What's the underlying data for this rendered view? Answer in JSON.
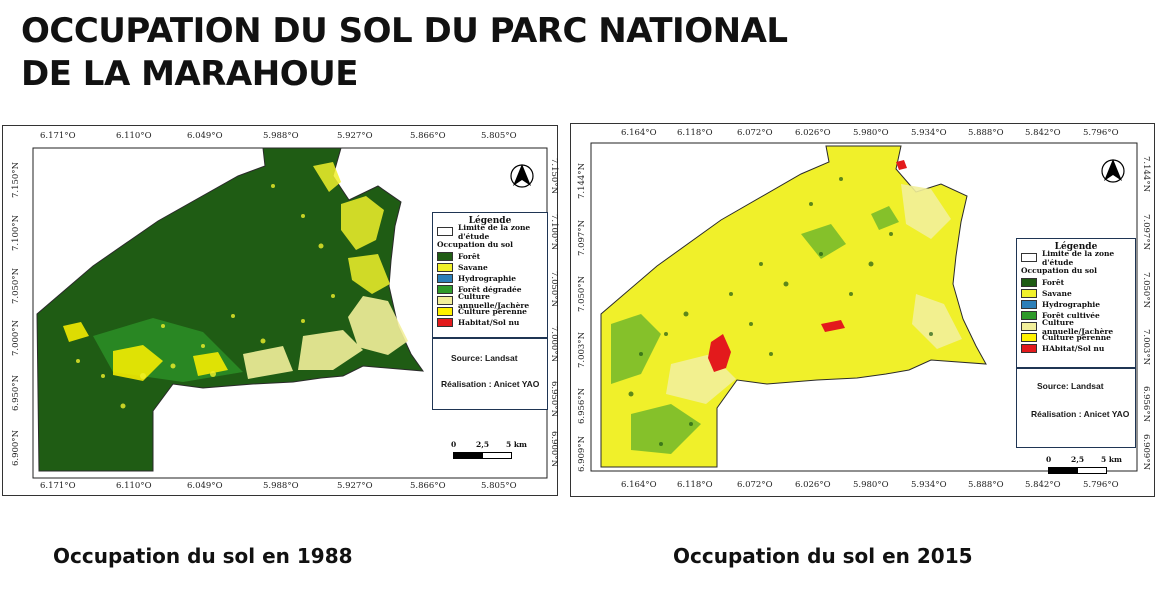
{
  "title": {
    "line1": "OCCUPATION DU SOL DU PARC NATIONAL",
    "line2": "DE LA MARAHOUE"
  },
  "captions": {
    "left": "Occupation du sol en 1988",
    "right": "Occupation du sol en 2015"
  },
  "colors": {
    "foret": "#1f5c14",
    "savane": "#f0f02a",
    "hydrographie": "#2c7fb8",
    "foret_degradee": "#2e9a2a",
    "culture_annuelle": "#f2ef9a",
    "culture_perenne": "#fff200",
    "habitat": "#e31a1c"
  },
  "maps": [
    {
      "id": "1988",
      "lon_ticks": [
        "6.171°O",
        "6.110°O",
        "6.049°O",
        "5.988°O",
        "5.927°O",
        "5.866°O",
        "5.805°O"
      ],
      "lat_ticks_left": [
        "7.150°N",
        "7.100°N",
        "7.050°N",
        "7.000°N",
        "6.950°N",
        "6.900°N"
      ],
      "lat_ticks_right": [
        "7.150°N",
        "7.100°N",
        "7.050°N",
        "7.000°N",
        "6.950°N",
        "6.900°N"
      ],
      "legend": {
        "title": "Légende",
        "boundary": "Limite de la zone d'étude",
        "subtitle": "Occupation du sol",
        "items": [
          {
            "label": "Forêt",
            "color": "#1f5c14"
          },
          {
            "label": "Savane",
            "color": "#f0f02a"
          },
          {
            "label": "Hydrographie",
            "color": "#2c7fb8"
          },
          {
            "label": "Forêt dégradée",
            "color": "#2e9a2a"
          },
          {
            "label": "Culture annuelle/Jachère",
            "color": "#f2ef9a"
          },
          {
            "label": "Culture pérenne",
            "color": "#fff200"
          },
          {
            "label": "Habitat/Sol nu",
            "color": "#e31a1c"
          }
        ]
      },
      "source": "Source: Landsat",
      "author": "Réalisation : Anicet YAO",
      "scale": {
        "zero": "0",
        "mid": "2,5",
        "end": "5 km"
      }
    },
    {
      "id": "2015",
      "lon_ticks": [
        "6.164°O",
        "6.118°O",
        "6.072°O",
        "6.026°O",
        "5.980°O",
        "5.934°O",
        "5.888°O",
        "5.842°O",
        "5.796°O"
      ],
      "lat_ticks_left": [
        "7.144°N",
        "7.097°N",
        "7.050°N",
        "7.003°N",
        "6.956°N",
        "6.909°N"
      ],
      "lat_ticks_right": [
        "7.144°N",
        "7.097°N",
        "7.050°N",
        "7.003°N",
        "6.956°N",
        "6.909°N"
      ],
      "legend": {
        "title": "Légende",
        "boundary": "Limite de la zone d'étude",
        "subtitle": "Occupation du sol",
        "items": [
          {
            "label": "Forêt",
            "color": "#1f5c14"
          },
          {
            "label": "Savane",
            "color": "#f0f02a"
          },
          {
            "label": "Hydrographie",
            "color": "#2c7fb8"
          },
          {
            "label": "Forêt cultivée",
            "color": "#2e9a2a"
          },
          {
            "label": "Culture annuelle/Jachère",
            "color": "#f2ef9a"
          },
          {
            "label": "Culture pérenne",
            "color": "#fff200"
          },
          {
            "label": "HAbitat/Sol nu",
            "color": "#e31a1c"
          }
        ]
      },
      "source": "Source: Landsat",
      "author": "Réalisation : Anicet YAO",
      "scale": {
        "zero": "0",
        "mid": "2,5",
        "end": "5 km"
      }
    }
  ],
  "icons": {
    "north_arrow": "north-arrow-icon"
  }
}
